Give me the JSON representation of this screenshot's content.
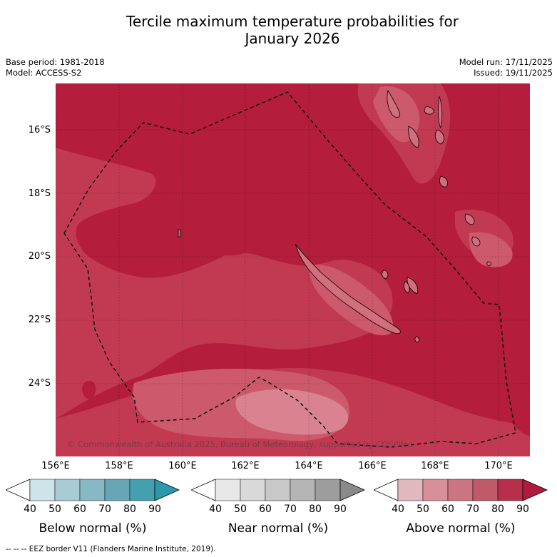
{
  "title_line1": "Tercile maximum temperature probabilities for",
  "title_line2": "January 2026",
  "meta": {
    "base_period": "Base period: 1981-2018",
    "model": "Model: ACCESS-S2",
    "model_run": "Model run: 17/11/2025",
    "issued": "Issued: 19/11/2025"
  },
  "map": {
    "copyright": "© Commonwealth of Australia 2025, Bureau of Meteorology, supported by COSPPac",
    "lat_labels": [
      "16°S",
      "18°S",
      "20°S",
      "22°S",
      "24°S"
    ],
    "lon_labels": [
      "156°E",
      "158°E",
      "160°E",
      "162°E",
      "164°E",
      "166°E",
      "168°E",
      "170°E"
    ],
    "colors": {
      "above_80_90": "#b41d3c",
      "above_70_80": "#c23a52",
      "above_60_70": "#cc5a6c",
      "above_50_60": "#d98391",
      "land": "#d26f7f",
      "eez": "#000000"
    }
  },
  "colorbars": [
    {
      "name": "Below normal (%)",
      "ticks": [
        "40",
        "50",
        "60",
        "70",
        "80",
        "90"
      ],
      "colors": [
        "#ffffff",
        "#cde4ea",
        "#a8ccd4",
        "#86b9c5",
        "#67a6b6",
        "#44a0b0",
        "#2b98ad"
      ]
    },
    {
      "name": "Near normal (%)",
      "ticks": [
        "40",
        "50",
        "60",
        "70",
        "80",
        "90"
      ],
      "colors": [
        "#ffffff",
        "#e8e8e8",
        "#d9d9d9",
        "#c8c8c8",
        "#b5b5b5",
        "#9d9d9d",
        "#8a8a8a"
      ]
    },
    {
      "name": "Above normal (%)",
      "ticks": [
        "40",
        "50",
        "60",
        "70",
        "80",
        "90"
      ],
      "colors": [
        "#ffffff",
        "#e2b8bf",
        "#d88f9a",
        "#cc7480",
        "#c05a69",
        "#b52e4a",
        "#b21a3b"
      ]
    }
  ],
  "footer": "--  --  -- EEZ border V11 (Flanders Marine Institute, 2019)."
}
